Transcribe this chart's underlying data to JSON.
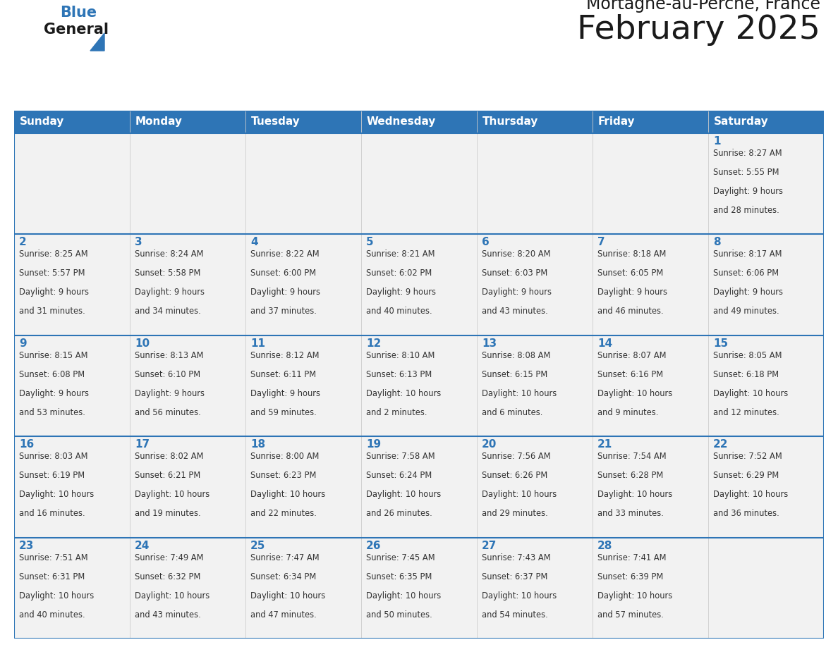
{
  "title": "February 2025",
  "subtitle": "Mortagne-au-Perche, France",
  "days_of_week": [
    "Sunday",
    "Monday",
    "Tuesday",
    "Wednesday",
    "Thursday",
    "Friday",
    "Saturday"
  ],
  "header_bg": "#2e75b6",
  "header_text": "#ffffff",
  "cell_bg": "#f2f2f2",
  "separator_color": "#2e75b6",
  "day_number_color": "#2e75b6",
  "text_color": "#333333",
  "title_color": "#1a1a1a",
  "logo_general_color": "#1a1a1a",
  "logo_blue_color": "#2e75b6",
  "logo_triangle_color": "#2e75b6",
  "calendar_data": [
    [
      null,
      null,
      null,
      null,
      null,
      null,
      {
        "day": 1,
        "sunrise": "8:27 AM",
        "sunset": "5:55 PM",
        "daylight": "9 hours and 28 minutes."
      }
    ],
    [
      {
        "day": 2,
        "sunrise": "8:25 AM",
        "sunset": "5:57 PM",
        "daylight": "9 hours and 31 minutes."
      },
      {
        "day": 3,
        "sunrise": "8:24 AM",
        "sunset": "5:58 PM",
        "daylight": "9 hours and 34 minutes."
      },
      {
        "day": 4,
        "sunrise": "8:22 AM",
        "sunset": "6:00 PM",
        "daylight": "9 hours and 37 minutes."
      },
      {
        "day": 5,
        "sunrise": "8:21 AM",
        "sunset": "6:02 PM",
        "daylight": "9 hours and 40 minutes."
      },
      {
        "day": 6,
        "sunrise": "8:20 AM",
        "sunset": "6:03 PM",
        "daylight": "9 hours and 43 minutes."
      },
      {
        "day": 7,
        "sunrise": "8:18 AM",
        "sunset": "6:05 PM",
        "daylight": "9 hours and 46 minutes."
      },
      {
        "day": 8,
        "sunrise": "8:17 AM",
        "sunset": "6:06 PM",
        "daylight": "9 hours and 49 minutes."
      }
    ],
    [
      {
        "day": 9,
        "sunrise": "8:15 AM",
        "sunset": "6:08 PM",
        "daylight": "9 hours and 53 minutes."
      },
      {
        "day": 10,
        "sunrise": "8:13 AM",
        "sunset": "6:10 PM",
        "daylight": "9 hours and 56 minutes."
      },
      {
        "day": 11,
        "sunrise": "8:12 AM",
        "sunset": "6:11 PM",
        "daylight": "9 hours and 59 minutes."
      },
      {
        "day": 12,
        "sunrise": "8:10 AM",
        "sunset": "6:13 PM",
        "daylight": "10 hours and 2 minutes."
      },
      {
        "day": 13,
        "sunrise": "8:08 AM",
        "sunset": "6:15 PM",
        "daylight": "10 hours and 6 minutes."
      },
      {
        "day": 14,
        "sunrise": "8:07 AM",
        "sunset": "6:16 PM",
        "daylight": "10 hours and 9 minutes."
      },
      {
        "day": 15,
        "sunrise": "8:05 AM",
        "sunset": "6:18 PM",
        "daylight": "10 hours and 12 minutes."
      }
    ],
    [
      {
        "day": 16,
        "sunrise": "8:03 AM",
        "sunset": "6:19 PM",
        "daylight": "10 hours and 16 minutes."
      },
      {
        "day": 17,
        "sunrise": "8:02 AM",
        "sunset": "6:21 PM",
        "daylight": "10 hours and 19 minutes."
      },
      {
        "day": 18,
        "sunrise": "8:00 AM",
        "sunset": "6:23 PM",
        "daylight": "10 hours and 22 minutes."
      },
      {
        "day": 19,
        "sunrise": "7:58 AM",
        "sunset": "6:24 PM",
        "daylight": "10 hours and 26 minutes."
      },
      {
        "day": 20,
        "sunrise": "7:56 AM",
        "sunset": "6:26 PM",
        "daylight": "10 hours and 29 minutes."
      },
      {
        "day": 21,
        "sunrise": "7:54 AM",
        "sunset": "6:28 PM",
        "daylight": "10 hours and 33 minutes."
      },
      {
        "day": 22,
        "sunrise": "7:52 AM",
        "sunset": "6:29 PM",
        "daylight": "10 hours and 36 minutes."
      }
    ],
    [
      {
        "day": 23,
        "sunrise": "7:51 AM",
        "sunset": "6:31 PM",
        "daylight": "10 hours and 40 minutes."
      },
      {
        "day": 24,
        "sunrise": "7:49 AM",
        "sunset": "6:32 PM",
        "daylight": "10 hours and 43 minutes."
      },
      {
        "day": 25,
        "sunrise": "7:47 AM",
        "sunset": "6:34 PM",
        "daylight": "10 hours and 47 minutes."
      },
      {
        "day": 26,
        "sunrise": "7:45 AM",
        "sunset": "6:35 PM",
        "daylight": "10 hours and 50 minutes."
      },
      {
        "day": 27,
        "sunrise": "7:43 AM",
        "sunset": "6:37 PM",
        "daylight": "10 hours and 54 minutes."
      },
      {
        "day": 28,
        "sunrise": "7:41 AM",
        "sunset": "6:39 PM",
        "daylight": "10 hours and 57 minutes."
      },
      null
    ]
  ]
}
